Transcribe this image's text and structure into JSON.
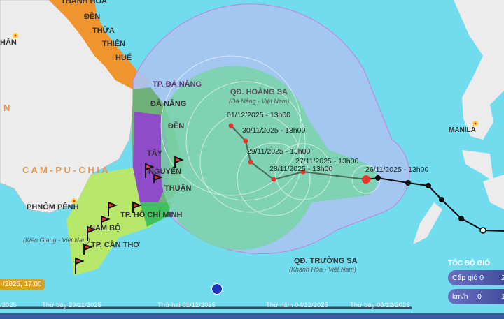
{
  "map": {
    "places": {
      "thanh_hoa": "THANH HÓA",
      "den1": "ĐỀN",
      "thua": "THỪA",
      "thien": "THIÊN",
      "hue": "HUẾ",
      "tp_da_nang": "TP. ĐÀ NẴNG",
      "da_nang": "ĐÀ NẴNG",
      "den2": "ĐỀN",
      "tay": "TÂY",
      "nguyen": "NGUYÊN",
      "thuan": "THUẬN",
      "campuchia": "C A M - P U - C H I A",
      "phnom_penh": "PHNÔM PÊNH",
      "ho_chi_minh": "TP. HỒ CHÍ MINH",
      "nam_bo": "NAM BỘ",
      "can_tho": "TP. CẦN THƠ",
      "kien_giang": "(Kiên Giang - Việt Nam)",
      "hoang_sa": "QĐ. HOÀNG SA",
      "hoang_sa_sub": "(Đà Nẵng - Việt Nam)",
      "truong_sa": "QĐ. TRƯỜNG SA",
      "truong_sa_sub": "(Khánh Hòa - Việt Nam)",
      "manila": "MANILA",
      "vientiane_partial": "HĂN",
      "laos_partial": "N"
    },
    "forecast_points": [
      {
        "label": "26/11/2025 - 13h00"
      },
      {
        "label": "27/11/2025 - 13h00"
      },
      {
        "label": "28/11/2025 - 13h00"
      },
      {
        "label": "29/11/2025 - 13h00"
      },
      {
        "label": "30/11/2025 - 13h00"
      },
      {
        "label": "01/12/2025 - 13h00"
      }
    ],
    "colors": {
      "sea": "#72dcef",
      "land": "#ececec",
      "danger_zone": "#a9c4f0",
      "strong_wind_zone": "#79d4a8",
      "track": "#5a7a5a",
      "past_track": "#111111",
      "storm_icon": "#e8342a"
    }
  },
  "timeline": {
    "current_time": "/2025, 17:00",
    "ticks": [
      "/2025",
      "Thứ bảy 29/11/2025",
      "Thứ hai 01/12/2025",
      "Thứ năm 04/12/2025",
      "Thứ bảy 06/12/2025"
    ],
    "progress": 0.5
  },
  "wind_legend": {
    "title": "TỐC ĐỘ GIÓ",
    "scale_label": "Cấp gió 0",
    "scale_next": "2",
    "unit_label": "km/h",
    "unit_value": "0",
    "unit_next": "1"
  }
}
